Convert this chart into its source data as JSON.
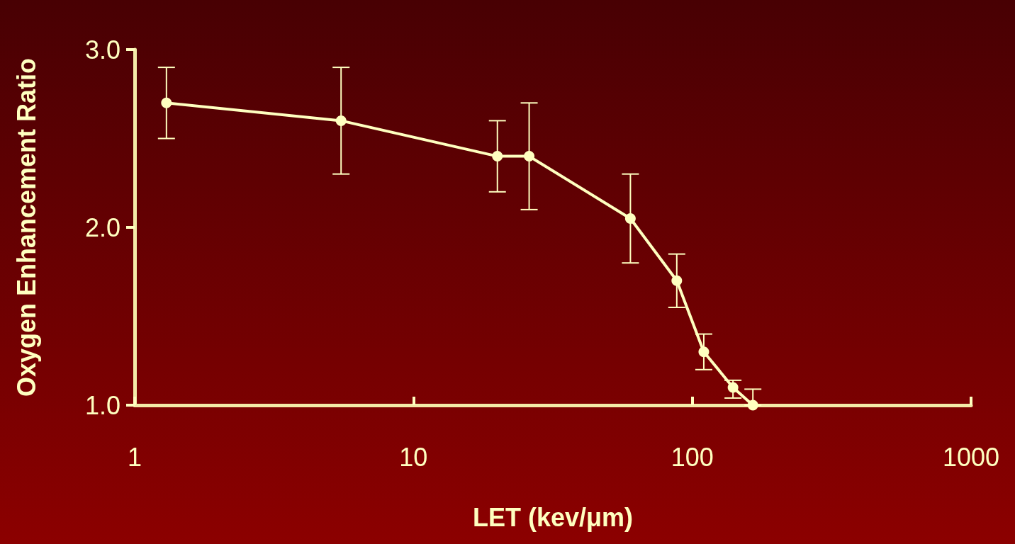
{
  "chart_data": {
    "type": "line",
    "xlabel": "LET (kev/μm)",
    "ylabel": "Oxygen Enhancement Ratio",
    "log": "x",
    "x": [
      1.3,
      5.5,
      20,
      26,
      60,
      88,
      110,
      140,
      165
    ],
    "series": [
      {
        "color": "#ffffc0",
        "values": [
          2.7,
          2.6,
          2.4,
          2.4,
          2.05,
          1.7,
          1.3,
          1.1,
          1.0
        ],
        "errors": [
          [
            2.5,
            2.9
          ],
          [
            2.3,
            2.9
          ],
          [
            2.2,
            2.6
          ],
          [
            2.1,
            2.7
          ],
          [
            1.8,
            2.3
          ],
          [
            1.55,
            1.85
          ],
          [
            1.2,
            1.4
          ],
          [
            1.04,
            1.14
          ],
          [
            1.0,
            1.09
          ]
        ]
      }
    ],
    "xlim": [
      1,
      1000
    ],
    "xticks": [
      1,
      10,
      100,
      1000
    ],
    "ylim": [
      1,
      3
    ],
    "yticks": [
      {
        "value": 1,
        "label": "1.0"
      },
      {
        "value": 2,
        "label": "2.0"
      },
      {
        "value": 3,
        "label": "3.0"
      }
    ],
    "marker": "circle",
    "line_style": "solid"
  }
}
